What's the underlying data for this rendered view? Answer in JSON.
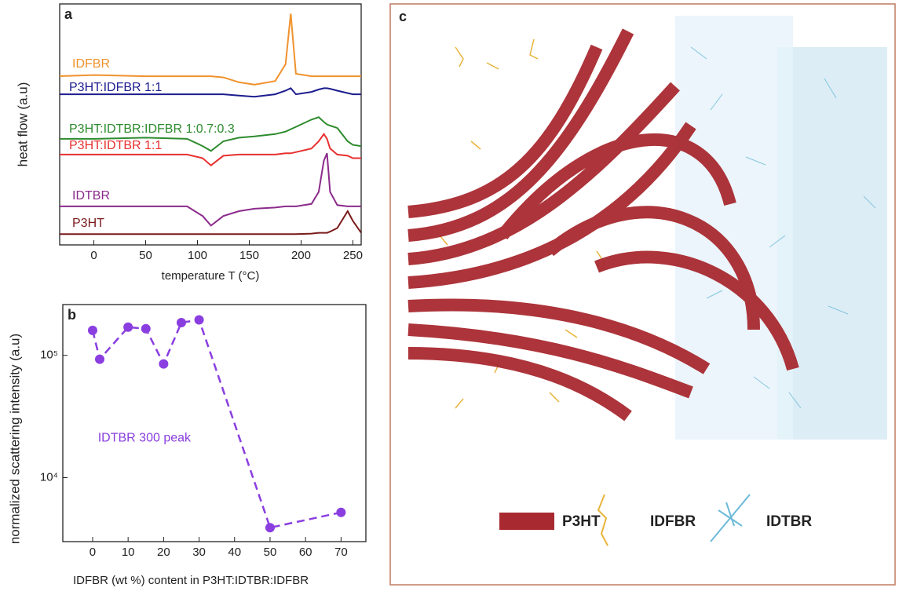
{
  "chart_data": [
    {
      "type": "line",
      "label": "a",
      "xlabel": "temperature T (°C)",
      "ylabel": "heat flow (a.u)",
      "x": [
        -35,
        0,
        50,
        90,
        105,
        113,
        125,
        140,
        155,
        175,
        185,
        190,
        195,
        210,
        217,
        222,
        225,
        228,
        235,
        245,
        250,
        258
      ],
      "xlim": [
        -33,
        258
      ],
      "xticks": [
        0,
        50,
        100,
        150,
        200,
        250
      ],
      "ylim": [
        0,
        100
      ],
      "series": [
        {
          "name": "IDFBR",
          "color": "#f0922e",
          "values": [
            70,
            70.5,
            70,
            70,
            70,
            70,
            69.5,
            67.5,
            66.5,
            68,
            75,
            96,
            71,
            70,
            70,
            70,
            70,
            70,
            70,
            70,
            70,
            70
          ]
        },
        {
          "name": "P3HT:IDFBR 1:1",
          "color": "#1c1c8e",
          "values": [
            62.5,
            62.5,
            62.5,
            62.5,
            62.5,
            62.5,
            62.5,
            62,
            61.5,
            62.5,
            64,
            65,
            62.5,
            63.5,
            64.5,
            65,
            65,
            64.8,
            64,
            63,
            62.5,
            62.5
          ]
        },
        {
          "name": "P3HT:IDTBR:IDFBR 1:0.7:0.3",
          "color": "#2e8b2e",
          "values": [
            44,
            44,
            44.5,
            44,
            41,
            39,
            43,
            44.5,
            45,
            46,
            47,
            48,
            49,
            52,
            53,
            51,
            50,
            49.5,
            48.5,
            43,
            41.5,
            41
          ]
        },
        {
          "name": "P3HT:IDTBR 1:1",
          "color": "#e83030",
          "values": [
            37.5,
            37.5,
            37.5,
            37.5,
            36,
            33,
            37,
            37.5,
            37.5,
            37.5,
            38,
            38,
            38.5,
            40,
            43,
            46,
            44,
            40,
            37.5,
            37,
            36,
            36
          ]
        },
        {
          "name": "IDTBR",
          "color": "#8b2a8b",
          "values": [
            16,
            16,
            16,
            16,
            12,
            8,
            12,
            14,
            15,
            15.5,
            16,
            16,
            16,
            17,
            22,
            35,
            38,
            22,
            16.5,
            16,
            16,
            16
          ]
        },
        {
          "name": "P3HT",
          "color": "#7a1a1a",
          "values": [
            4.5,
            4.5,
            4.5,
            4.5,
            4.5,
            4.5,
            4.5,
            4.5,
            4.5,
            4.5,
            4.5,
            4.5,
            4.5,
            4.7,
            5,
            5,
            5,
            5.5,
            7,
            14,
            10,
            5
          ]
        }
      ]
    },
    {
      "type": "scatter",
      "label": "b",
      "xlabel": "IDFBR (wt %) content in P3HT:IDTBR:IDFBR",
      "ylabel": "normalized scattering intensity (a.u)",
      "annotation": "IDTBR 300 peak",
      "log_y": true,
      "color": "#8a3ee0",
      "x": [
        0,
        2,
        10,
        15,
        20,
        25,
        30,
        50,
        70
      ],
      "values": [
        160000,
        93000,
        170000,
        165000,
        85000,
        185000,
        195000,
        3900,
        5200
      ],
      "xlim": [
        -8.4,
        77
      ],
      "xticks": [
        0,
        10,
        20,
        30,
        40,
        50,
        60,
        70
      ],
      "ylim": [
        3000,
        260000
      ],
      "yticks": [
        {
          "value": 10000,
          "label": "10⁴"
        },
        {
          "value": 100000,
          "label": "10⁵"
        }
      ]
    }
  ],
  "illustration": {
    "label": "c",
    "legend": [
      "P3HT",
      "IDFBR",
      "IDTBR"
    ]
  }
}
